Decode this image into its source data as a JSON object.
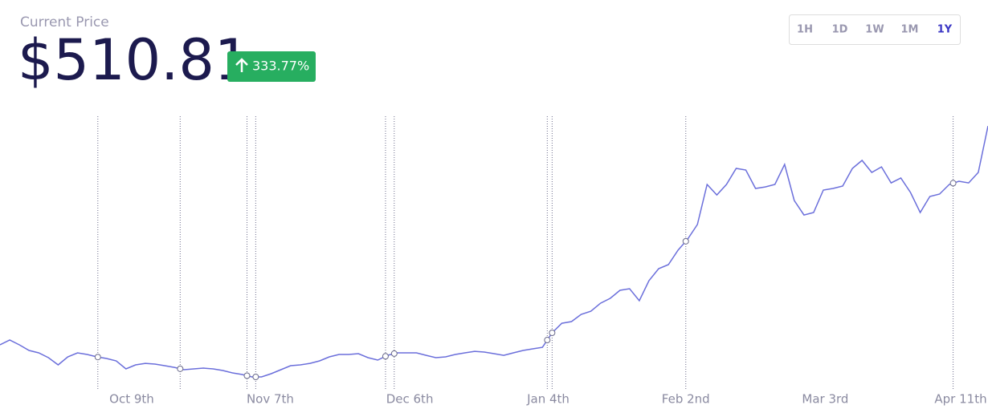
{
  "header": {
    "label": "Current Price",
    "price": "$510.81",
    "change": "333.77%"
  },
  "range_buttons": {
    "options": [
      "1H",
      "1D",
      "1W",
      "1M",
      "1Y"
    ],
    "selected": 4
  },
  "chart_data": {
    "type": "line",
    "color": "#6b6fdb",
    "values": [
      117.8,
      126.4,
      117.8,
      107.7,
      103.4,
      94.7,
      81.8,
      96.2,
      103.4,
      100.5,
      96.2,
      93.3,
      89.0,
      74.6,
      81.8,
      84.6,
      83.2,
      80.3,
      77.4,
      73.1,
      74.6,
      76.0,
      74.6,
      71.7,
      67.4,
      64.5,
      60.2,
      60.2,
      65.9,
      73.1,
      80.3,
      81.8,
      84.6,
      89.0,
      96.2,
      100.5,
      100.5,
      102.0,
      94.7,
      90.4,
      99.0,
      103.4,
      103.4,
      103.4,
      99.0,
      94.7,
      96.2,
      100.5,
      103.4,
      106.2,
      104.8,
      102.0,
      99.0,
      103.4,
      107.7,
      110.6,
      113.4,
      139.4,
      156.6,
      159.5,
      172.5,
      178.2,
      192.6,
      201.3,
      215.7,
      218.6,
      197.0,
      233.0,
      254.6,
      261.8,
      287.7,
      307.8,
      333.8,
      405.8,
      387.0,
      405.8,
      434.6,
      431.7,
      398.6,
      401.4,
      405.8,
      441.8,
      377.0,
      351.0,
      355.4,
      395.7,
      398.6,
      402.9,
      434.6,
      449.0,
      427.4,
      437.4,
      408.6,
      417.3,
      391.4,
      355.4,
      384.2,
      388.5,
      405.8,
      411.5,
      408.6,
      427.4,
      510.81
    ],
    "xlim": [
      0,
      102
    ],
    "ylim": [
      38.6,
      528.2
    ],
    "xticks": [
      {
        "value": 13.6,
        "label": "Oct 9th"
      },
      {
        "value": 27.9,
        "label": "Nov 7th"
      },
      {
        "value": 42.3,
        "label": "Dec 6th"
      },
      {
        "value": 56.6,
        "label": "Jan 4th"
      },
      {
        "value": 70.8,
        "label": "Feb 2nd"
      },
      {
        "value": 85.2,
        "label": "Mar 3rd"
      },
      {
        "value": 99.2,
        "label": "Apr 11th"
      }
    ],
    "markers": [
      10.1,
      18.6,
      25.5,
      26.4,
      39.8,
      40.7,
      56.5,
      57.0,
      70.8,
      98.4
    ]
  }
}
